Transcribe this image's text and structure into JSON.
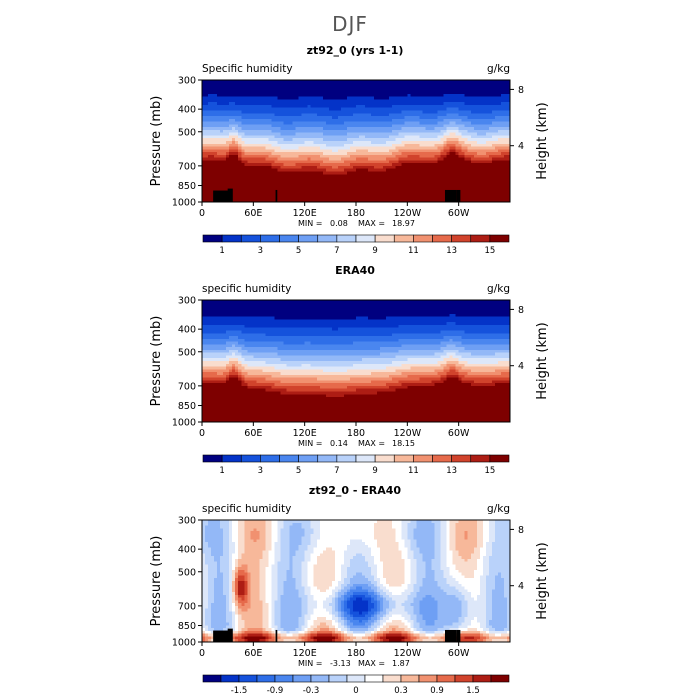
{
  "figure": {
    "title": "DJF"
  },
  "chart_data": [
    {
      "type": "heatmap",
      "title": "zt92_0 (yrs 1-1)",
      "left_label": "Specific humidity",
      "right_label": "g/kg",
      "ylabel": "Pressure (mb)",
      "ylabel_right": "Height (km)",
      "yticks": [
        "300",
        "400",
        "500",
        "700",
        "850",
        "1000"
      ],
      "ytick_values": [
        300,
        400,
        500,
        700,
        850,
        1000
      ],
      "yticks_right": [
        "8",
        "4"
      ],
      "yticks_right_values": [
        8,
        4
      ],
      "xticks": [
        "0",
        "60E",
        "120E",
        "180",
        "120W",
        "60W"
      ],
      "xtick_values": [
        0,
        60,
        120,
        180,
        240,
        300
      ],
      "xlim": [
        0,
        360
      ],
      "ylim": [
        1000,
        300
      ],
      "stats": {
        "min_label": "MIN =",
        "min": "0.08",
        "max_label": "MAX =",
        "max": "18.97"
      },
      "colorbar_labels": [
        "1",
        "3",
        "5",
        "7",
        "9",
        "11",
        "13",
        "15"
      ],
      "colors": [
        "#000080",
        "#0433c8",
        "#1552dc",
        "#2e6ee8",
        "#4a86ef",
        "#6e9ff4",
        "#93b8f7",
        "#b9d2fa",
        "#dde7f9",
        "#f9ddce",
        "#f7b89a",
        "#f19170",
        "#e66a4b",
        "#d1432c",
        "#ad1d14",
        "#7e0000"
      ],
      "field": "humidity",
      "terrain": true
    },
    {
      "type": "heatmap",
      "title": "ERA40",
      "left_label": "specific humidity",
      "right_label": "g/kg",
      "ylabel": "Pressure (mb)",
      "ylabel_right": "Height (km)",
      "yticks": [
        "300",
        "400",
        "500",
        "700",
        "850",
        "1000"
      ],
      "ytick_values": [
        300,
        400,
        500,
        700,
        850,
        1000
      ],
      "yticks_right": [
        "8",
        "4"
      ],
      "yticks_right_values": [
        8,
        4
      ],
      "xticks": [
        "0",
        "60E",
        "120E",
        "180",
        "120W",
        "60W"
      ],
      "xtick_values": [
        0,
        60,
        120,
        180,
        240,
        300
      ],
      "xlim": [
        0,
        360
      ],
      "ylim": [
        1000,
        300
      ],
      "stats": {
        "min_label": "MIN =",
        "min": "0.14",
        "max_label": "MAX =",
        "max": "18.15"
      },
      "colorbar_labels": [
        "1",
        "3",
        "5",
        "7",
        "9",
        "11",
        "13",
        "15"
      ],
      "colors": [
        "#000080",
        "#0433c8",
        "#1552dc",
        "#2e6ee8",
        "#4a86ef",
        "#6e9ff4",
        "#93b8f7",
        "#b9d2fa",
        "#dde7f9",
        "#f9ddce",
        "#f7b89a",
        "#f19170",
        "#e66a4b",
        "#d1432c",
        "#ad1d14",
        "#7e0000"
      ],
      "field": "humidity_era",
      "terrain": false
    },
    {
      "type": "heatmap",
      "title": "zt92_0 - ERA40",
      "left_label": "specific humidity",
      "right_label": "g/kg",
      "ylabel": "Pressure (mb)",
      "ylabel_right": "Height (km)",
      "yticks": [
        "300",
        "400",
        "500",
        "700",
        "850",
        "1000"
      ],
      "ytick_values": [
        300,
        400,
        500,
        700,
        850,
        1000
      ],
      "yticks_right": [
        "8",
        "4"
      ],
      "yticks_right_values": [
        8,
        4
      ],
      "xticks": [
        "0",
        "60E",
        "120E",
        "180",
        "120W",
        "60W"
      ],
      "xtick_values": [
        0,
        60,
        120,
        180,
        240,
        300
      ],
      "xlim": [
        0,
        360
      ],
      "ylim": [
        1000,
        300
      ],
      "stats": {
        "min_label": "MIN =",
        "min": "-3.13",
        "max_label": "MAX =",
        "max": "1.87"
      },
      "colorbar_labels": [
        "-1.5",
        "-0.9",
        "-0.3",
        "0",
        "0.3",
        "0.9",
        "1.5"
      ],
      "colors": [
        "#000080",
        "#0433c8",
        "#1552dc",
        "#2e6ee8",
        "#4a86ef",
        "#6e9ff4",
        "#93b8f7",
        "#b9d2fa",
        "#dde7f9",
        "#ffffff",
        "#f9ddce",
        "#f7b89a",
        "#f19170",
        "#e66a4b",
        "#d1432c",
        "#ad1d14",
        "#7e0000"
      ],
      "field": "difference",
      "terrain": true
    }
  ]
}
